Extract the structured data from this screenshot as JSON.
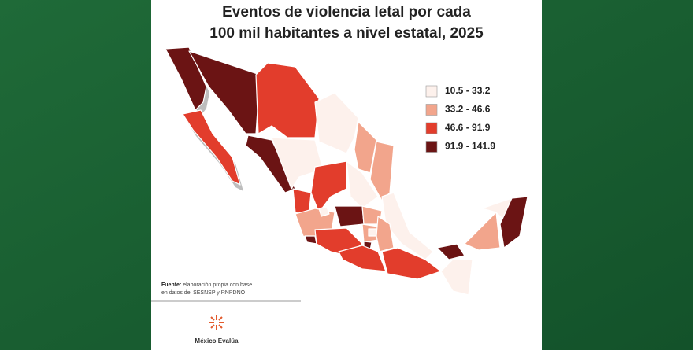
{
  "title_lines": [
    "Eventos de violencia letal por cada",
    "100 mil habitantes a nivel estatal, 2025"
  ],
  "legend": [
    {
      "label": "10.5 - 33.2",
      "color": "#fdf1ec"
    },
    {
      "label": "33.2 - 46.6",
      "color": "#f2a58c"
    },
    {
      "label": "46.6 - 91.9",
      "color": "#e23d2c"
    },
    {
      "label": "91.9 - 141.9",
      "color": "#6b1414"
    }
  ],
  "source": {
    "label": "Fuente:",
    "lines": [
      "elaboración propia con base",
      "en datos del SESNSP y RNPDNO"
    ]
  },
  "logo": "México Evalúa"
}
